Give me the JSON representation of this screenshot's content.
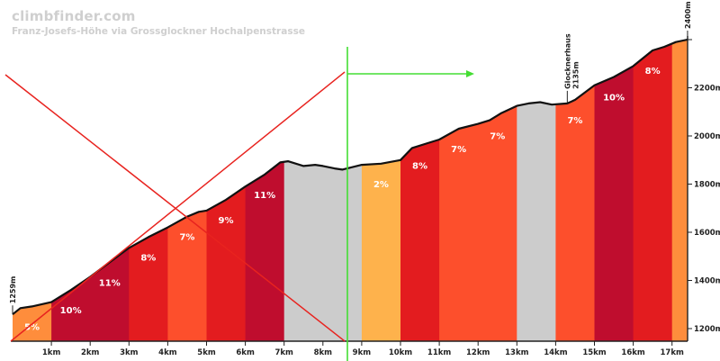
{
  "brand": "climbfinder.com",
  "chart_data": {
    "type": "area",
    "title": "Franz-Josefs-Höhe via Grossglockner Hochalpenstrasse",
    "x_unit": "km",
    "y_unit": "m",
    "xlim": [
      0,
      17.6
    ],
    "ylim": [
      1150,
      2420
    ],
    "x_ticks": [
      "1km",
      "2km",
      "3km",
      "4km",
      "5km",
      "6km",
      "7km",
      "8km",
      "9km",
      "10km",
      "11km",
      "12km",
      "13km",
      "14km",
      "15km",
      "16km",
      "17km"
    ],
    "y_ticks": [
      "1200m",
      "1400m",
      "1600m",
      "1800m",
      "2000m",
      "2200m",
      "2400m"
    ],
    "profile": [
      [
        0,
        1259
      ],
      [
        0.2,
        1285
      ],
      [
        0.5,
        1292
      ],
      [
        1.0,
        1310
      ],
      [
        1.5,
        1360
      ],
      [
        2.0,
        1415
      ],
      [
        2.5,
        1475
      ],
      [
        3.0,
        1535
      ],
      [
        3.5,
        1580
      ],
      [
        4.0,
        1620
      ],
      [
        4.5,
        1665
      ],
      [
        4.8,
        1685
      ],
      [
        5.0,
        1690
      ],
      [
        5.5,
        1735
      ],
      [
        6.0,
        1790
      ],
      [
        6.5,
        1840
      ],
      [
        6.9,
        1890
      ],
      [
        7.1,
        1895
      ],
      [
        7.5,
        1875
      ],
      [
        7.8,
        1880
      ],
      [
        8.0,
        1875
      ],
      [
        8.3,
        1865
      ],
      [
        8.5,
        1860
      ],
      [
        9.0,
        1880
      ],
      [
        9.5,
        1885
      ],
      [
        10.0,
        1900
      ],
      [
        10.3,
        1950
      ],
      [
        10.7,
        1970
      ],
      [
        11.0,
        1985
      ],
      [
        11.5,
        2030
      ],
      [
        12.0,
        2050
      ],
      [
        12.3,
        2065
      ],
      [
        12.6,
        2095
      ],
      [
        13.0,
        2125
      ],
      [
        13.3,
        2135
      ],
      [
        13.6,
        2140
      ],
      [
        13.9,
        2130
      ],
      [
        14.3,
        2135
      ],
      [
        14.5,
        2150
      ],
      [
        15.0,
        2210
      ],
      [
        15.5,
        2245
      ],
      [
        16.0,
        2290
      ],
      [
        16.5,
        2355
      ],
      [
        16.8,
        2370
      ],
      [
        17.1,
        2390
      ],
      [
        17.4,
        2400
      ]
    ],
    "segments": [
      {
        "from": 0,
        "to": 1,
        "gradient": "5%",
        "color": "#fe8d3c"
      },
      {
        "from": 1,
        "to": 3,
        "gradient": "10%",
        "color": "#bf0d2e",
        "labels": [
          "10%",
          "11%"
        ]
      },
      {
        "from": 3,
        "to": 4,
        "gradient": "8%",
        "color": "#e31c1f"
      },
      {
        "from": 4,
        "to": 5,
        "gradient": "7%",
        "color": "#fd4f2c"
      },
      {
        "from": 5,
        "to": 6,
        "gradient": "9%",
        "color": "#e31c1f"
      },
      {
        "from": 6,
        "to": 7,
        "gradient": "11%",
        "color": "#bf0d2e"
      },
      {
        "from": 7,
        "to": 9,
        "gradient": "",
        "color": "#cccccc"
      },
      {
        "from": 9,
        "to": 10,
        "gradient": "2%",
        "color": "#feb24c"
      },
      {
        "from": 10,
        "to": 11,
        "gradient": "8%",
        "color": "#e31c1f"
      },
      {
        "from": 11,
        "to": 13,
        "gradient": "7%",
        "color": "#fd4f2c",
        "labels": [
          "7%",
          "7%"
        ]
      },
      {
        "from": 13,
        "to": 14,
        "gradient": "",
        "color": "#cccccc"
      },
      {
        "from": 14,
        "to": 15,
        "gradient": "7%",
        "color": "#fd4f2c"
      },
      {
        "from": 15,
        "to": 16,
        "gradient": "10%",
        "color": "#bf0d2e"
      },
      {
        "from": 16,
        "to": 17,
        "gradient": "8%",
        "color": "#e31c1f"
      },
      {
        "from": 17,
        "to": 17.4,
        "gradient": "",
        "color": "#fe8d3c"
      }
    ],
    "annotations": [
      {
        "km": 0,
        "elevation": 1259,
        "text": "1259m"
      },
      {
        "km": 14.3,
        "elevation": 2135,
        "text": "Glocknerhaus",
        "text2": "2135m"
      },
      {
        "km": 17.4,
        "elevation": 2400,
        "text": "2400m"
      }
    ]
  }
}
